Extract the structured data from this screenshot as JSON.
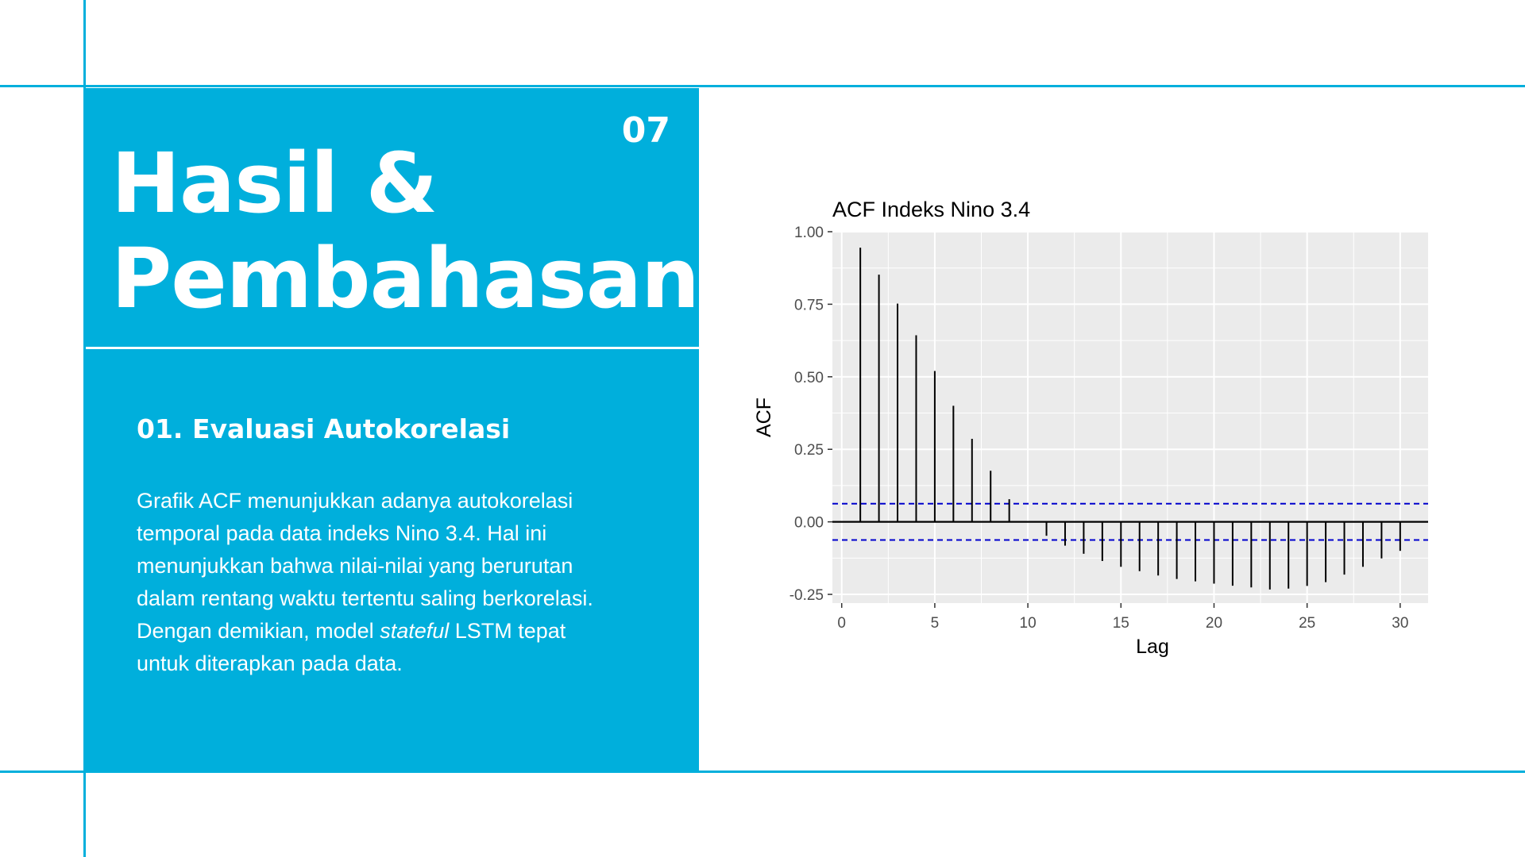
{
  "slide": {
    "number": "07",
    "title_line1": "Hasil &",
    "title_line2": "Pembahasan"
  },
  "section": {
    "heading": "01. Evaluasi Autokorelasi",
    "body_part1": "Grafik ACF menunjukkan adanya autokorelasi temporal pada data indeks Nino 3.4. Hal ini menunjukkan bahwa nilai-nilai yang berurutan dalam rentang waktu tertentu saling berkorelasi. Dengan demikian, model ",
    "body_italic": "stateful",
    "body_part2": " LSTM tepat untuk diterapkan pada data."
  },
  "colors": {
    "accent": "#00afdc",
    "panel_text": "#ffffff",
    "plot_background": "#ebebeb",
    "grid": "#ffffff",
    "confidence_band": "#0000cc",
    "bars": "#000000"
  },
  "chart_data": {
    "type": "bar",
    "subtype": "acf-lollipop",
    "title": "ACF Indeks Nino 3.4",
    "xlabel": "Lag",
    "ylabel": "ACF",
    "x": [
      1,
      2,
      3,
      4,
      5,
      6,
      7,
      8,
      9,
      10,
      11,
      12,
      13,
      14,
      15,
      16,
      17,
      18,
      19,
      20,
      21,
      22,
      23,
      24,
      25,
      26,
      27,
      28,
      29,
      30
    ],
    "values": [
      0.945,
      0.852,
      0.752,
      0.643,
      0.52,
      0.4,
      0.286,
      0.176,
      0.078,
      -0.002,
      -0.048,
      -0.082,
      -0.11,
      -0.135,
      -0.155,
      -0.17,
      -0.185,
      -0.197,
      -0.205,
      -0.213,
      -0.22,
      -0.226,
      -0.233,
      -0.23,
      -0.221,
      -0.208,
      -0.182,
      -0.155,
      -0.126,
      -0.1
    ],
    "confidence_interval": [
      -0.0625,
      0.0625
    ],
    "xlim": [
      -0.5,
      31.5
    ],
    "ylim": [
      -0.28,
      1.0
    ],
    "xticks": [
      0,
      5,
      10,
      15,
      20,
      25,
      30
    ],
    "xtick_labels": [
      "0",
      "5",
      "10",
      "15",
      "20",
      "25",
      "30"
    ],
    "yticks": [
      1.0,
      0.75,
      0.5,
      0.25,
      0.0,
      -0.25
    ],
    "ytick_labels": [
      "1.00",
      "0.75",
      "0.50",
      "0.25",
      "0.00",
      "-0.25"
    ],
    "grid": true,
    "legend": "none"
  }
}
